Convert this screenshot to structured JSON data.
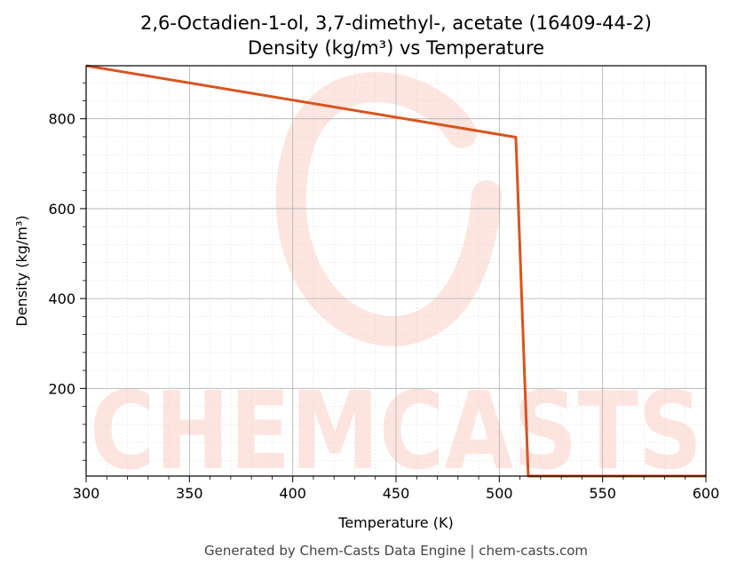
{
  "chart_data": {
    "type": "line",
    "title_line1": "2,6-Octadien-1-ol, 3,7-dimethyl-, acetate (16409-44-2)",
    "title_line2": "Density (kg/m³) vs Temperature",
    "xlabel": "Temperature (K)",
    "ylabel": "Density (kg/m³)",
    "xlim": [
      300,
      600
    ],
    "ylim": [
      5,
      918
    ],
    "xticks": [
      300,
      350,
      400,
      450,
      500,
      550,
      600
    ],
    "yticks": [
      200,
      400,
      600,
      800
    ],
    "grid": true,
    "series": [
      {
        "color": "#d9531e",
        "x": [
          300,
          508,
          514,
          600
        ],
        "y": [
          918,
          759,
          5,
          5
        ]
      }
    ]
  },
  "watermark": {
    "text": "CHEMCASTS",
    "color": "#fde0da"
  },
  "footer": "Generated by Chem-Casts Data Engine | chem-casts.com"
}
